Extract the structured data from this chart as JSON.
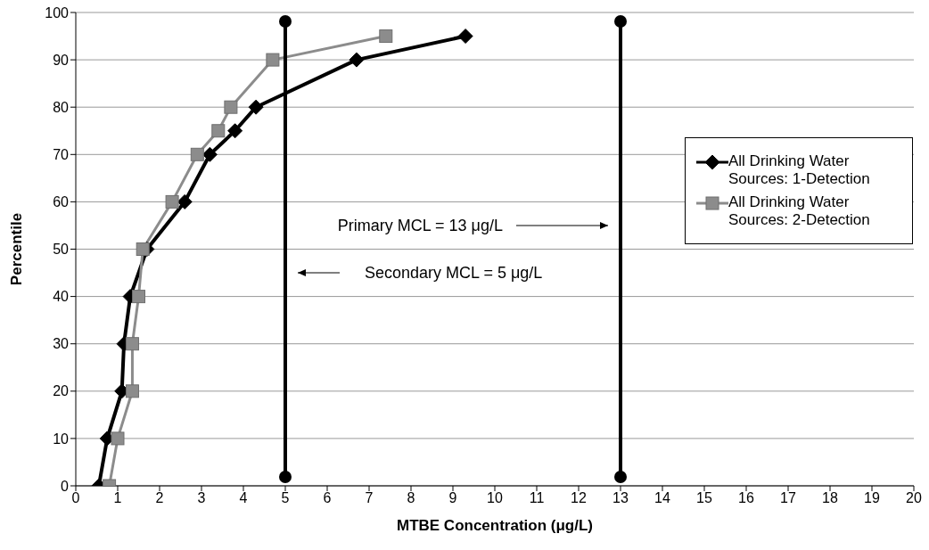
{
  "chart_data": {
    "type": "line",
    "xlabel": "MTBE Concentration (μg/L)",
    "ylabel": "Percentile",
    "xlim": [
      0,
      20
    ],
    "xticks": [
      0,
      1,
      2,
      3,
      4,
      5,
      6,
      7,
      8,
      9,
      10,
      11,
      12,
      13,
      14,
      15,
      16,
      17,
      18,
      19,
      20
    ],
    "ylim": [
      0,
      100
    ],
    "yticks": [
      0,
      10,
      20,
      30,
      40,
      50,
      60,
      70,
      80,
      90,
      100
    ],
    "grid": "y",
    "legend": "right",
    "line_style": "solid",
    "series": [
      {
        "name": "All Drinking Water Sources: 1-Detection",
        "color": "#000000",
        "marker": "diamond",
        "x": [
          0.55,
          0.75,
          1.1,
          1.15,
          1.3,
          1.7,
          2.6,
          3.2,
          3.8,
          4.3,
          6.7,
          9.3
        ],
        "values": [
          0,
          10,
          20,
          30,
          40,
          50,
          60,
          70,
          75,
          80,
          90,
          95
        ]
      },
      {
        "name": "All Drinking Water Sources: 2-Detection",
        "color": "#8c8c8c",
        "marker": "square",
        "x": [
          0.8,
          1.0,
          1.35,
          1.35,
          1.5,
          1.6,
          2.3,
          2.9,
          3.4,
          3.7,
          4.7,
          7.4
        ],
        "values": [
          0,
          10,
          20,
          30,
          40,
          50,
          60,
          70,
          75,
          80,
          90,
          95
        ]
      }
    ],
    "ref_lines": [
      {
        "axis": "x",
        "value": 5,
        "color": "#000000"
      },
      {
        "axis": "x",
        "value": 13,
        "color": "#000000"
      }
    ],
    "annotations": [
      "Primary MCL = 13 μg/L",
      "Secondary MCL = 5 μg/L"
    ]
  }
}
